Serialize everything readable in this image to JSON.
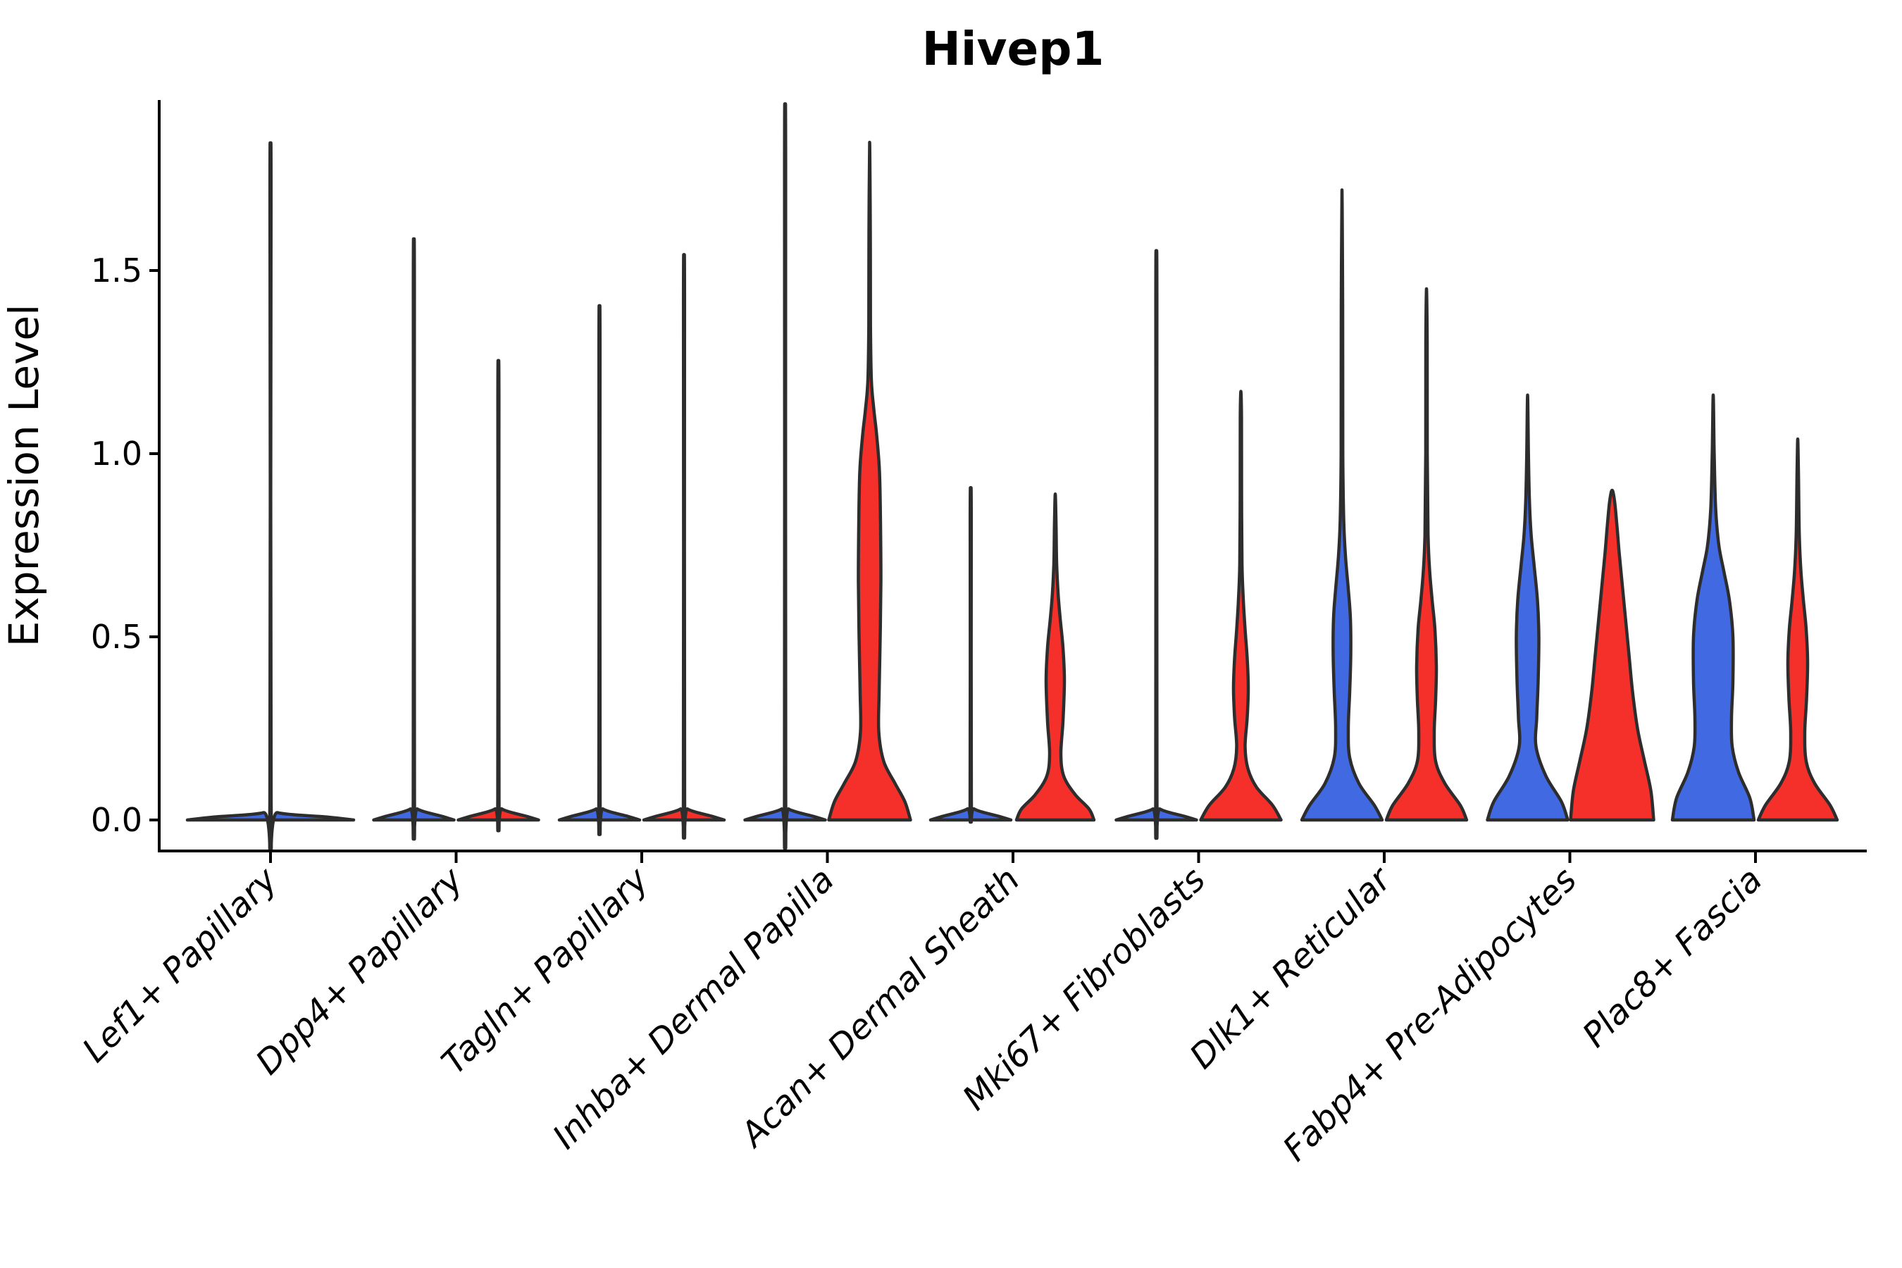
{
  "title": "Hivep1",
  "axes": {
    "y_label": "Expression Level",
    "y_ticks": [
      "0.0",
      "0.5",
      "1.0",
      "1.5"
    ],
    "y_tick_values": [
      0.0,
      0.5,
      1.0,
      1.5
    ],
    "x_categories": [
      "Lef1+ Papillary",
      "Dpp4+ Papillary",
      "Tagln+ Papillary",
      "Inhba+ Dermal Papilla",
      "Acan+ Dermal Sheath",
      "Mki67+ Fibroblasts",
      "Dlk1+ Reticular",
      "Fabp4+ Pre-Adipocytes",
      "Plac8+ Fascia"
    ]
  },
  "colors": {
    "group_blue": "#4169E1",
    "group_red": "#F5302B",
    "violin_outline": "#2D2D2D",
    "axis": "#000000",
    "background": "#ffffff"
  },
  "chart_data": {
    "type": "violin",
    "title": "Hivep1",
    "xlabel": "",
    "ylabel": "Expression Level",
    "ylim": [
      -0.08,
      1.97
    ],
    "y_ticks": [
      0.0,
      0.5,
      1.0,
      1.5
    ],
    "grid": false,
    "legend": "none shown",
    "categories": [
      "Lef1+ Papillary",
      "Dpp4+ Papillary",
      "Tagln+ Papillary",
      "Inhba+ Dermal Papilla",
      "Acan+ Dermal Sheath",
      "Mki67+ Fibroblasts",
      "Dlk1+ Reticular",
      "Fabp4+ Pre-Adipocytes",
      "Plac8+ Fascia"
    ],
    "groups": [
      {
        "key": "blue",
        "color": "#4169E1"
      },
      {
        "key": "red",
        "color": "#F5302B"
      }
    ],
    "series": [
      {
        "name": "blue",
        "max_expression": [
          1.77,
          1.52,
          1.35,
          1.87,
          0.88,
          1.49,
          1.72,
          1.16,
          1.16
        ]
      },
      {
        "name": "red",
        "max_expression": [
          null,
          1.21,
          1.48,
          1.85,
          0.89,
          1.17,
          1.45,
          0.9,
          1.04
        ]
      }
    ],
    "violins": [
      {
        "category": "Lef1+ Papillary",
        "group": "blue",
        "cat_index": 0,
        "side": 0,
        "tip": 1.77,
        "density_profile": [
          [
            0,
            118
          ],
          [
            0.008,
            80
          ],
          [
            0.02,
            10
          ],
          [
            0.05,
            0.9
          ],
          [
            1.7,
            0.8
          ],
          [
            1.77,
            0
          ]
        ]
      },
      {
        "category": "Dpp4+ Papillary",
        "group": "blue",
        "cat_index": 1,
        "side": -1,
        "tip": 1.52,
        "density_profile": [
          [
            0,
            57
          ],
          [
            0.01,
            40
          ],
          [
            0.03,
            5
          ],
          [
            0.06,
            0.9
          ],
          [
            1.46,
            0.8
          ],
          [
            1.52,
            0
          ]
        ]
      },
      {
        "category": "Dpp4+ Papillary",
        "group": "red",
        "cat_index": 1,
        "side": 1,
        "tip": 1.21,
        "density_profile": [
          [
            0,
            57
          ],
          [
            0.01,
            40
          ],
          [
            0.03,
            5
          ],
          [
            0.06,
            0.9
          ],
          [
            1.15,
            0.8
          ],
          [
            1.21,
            0
          ]
        ]
      },
      {
        "category": "Tagln+ Papillary",
        "group": "blue",
        "cat_index": 2,
        "side": -1,
        "tip": 1.35,
        "density_profile": [
          [
            0,
            57
          ],
          [
            0.01,
            40
          ],
          [
            0.03,
            5
          ],
          [
            0.06,
            0.9
          ],
          [
            1.29,
            0.8
          ],
          [
            1.35,
            0
          ]
        ]
      },
      {
        "category": "Tagln+ Papillary",
        "group": "red",
        "cat_index": 2,
        "side": 1,
        "tip": 1.48,
        "density_profile": [
          [
            0,
            57
          ],
          [
            0.01,
            40
          ],
          [
            0.03,
            5
          ],
          [
            0.06,
            0.9
          ],
          [
            1.42,
            0.8
          ],
          [
            1.48,
            0
          ]
        ]
      },
      {
        "category": "Inhba+ Dermal Papilla",
        "group": "blue",
        "cat_index": 3,
        "side": -1,
        "tip": 1.87,
        "density_profile": [
          [
            0,
            57
          ],
          [
            0.01,
            40
          ],
          [
            0.03,
            5
          ],
          [
            0.06,
            0.9
          ],
          [
            1.8,
            0.8
          ],
          [
            1.87,
            0
          ]
        ]
      },
      {
        "category": "Inhba+ Dermal Papilla",
        "group": "red",
        "cat_index": 3,
        "side": 1,
        "tip": 1.85,
        "density_profile": [
          [
            0,
            58
          ],
          [
            0.05,
            50
          ],
          [
            0.1,
            36
          ],
          [
            0.16,
            20
          ],
          [
            0.24,
            13
          ],
          [
            0.35,
            13.5
          ],
          [
            0.5,
            15
          ],
          [
            0.65,
            16
          ],
          [
            0.8,
            15.5
          ],
          [
            0.95,
            14
          ],
          [
            1.05,
            10
          ],
          [
            1.12,
            6
          ],
          [
            1.2,
            2.5
          ],
          [
            1.35,
            1.2
          ],
          [
            1.6,
            1
          ],
          [
            1.85,
            0
          ]
        ]
      },
      {
        "category": "Acan+ Dermal Sheath",
        "group": "blue",
        "cat_index": 4,
        "side": -1,
        "tip": 0.88,
        "density_profile": [
          [
            0,
            57
          ],
          [
            0.01,
            40
          ],
          [
            0.03,
            5
          ],
          [
            0.06,
            0.9
          ],
          [
            0.83,
            0.8
          ],
          [
            0.88,
            0
          ]
        ]
      },
      {
        "category": "Acan+ Dermal Sheath",
        "group": "red",
        "cat_index": 4,
        "side": 1,
        "tip": 0.89,
        "density_profile": [
          [
            0,
            55
          ],
          [
            0.03,
            48
          ],
          [
            0.07,
            28
          ],
          [
            0.12,
            12
          ],
          [
            0.18,
            8
          ],
          [
            0.27,
            11
          ],
          [
            0.38,
            13
          ],
          [
            0.47,
            11
          ],
          [
            0.55,
            7
          ],
          [
            0.62,
            4
          ],
          [
            0.7,
            2
          ],
          [
            0.8,
            1.2
          ],
          [
            0.89,
            0
          ]
        ]
      },
      {
        "category": "Mki67+ Fibroblasts",
        "group": "blue",
        "cat_index": 5,
        "side": -1,
        "tip": 1.49,
        "density_profile": [
          [
            0,
            57
          ],
          [
            0.01,
            40
          ],
          [
            0.03,
            5
          ],
          [
            0.06,
            0.9
          ],
          [
            1.43,
            0.8
          ],
          [
            1.49,
            0
          ]
        ]
      },
      {
        "category": "Mki67+ Fibroblasts",
        "group": "red",
        "cat_index": 5,
        "side": 1,
        "tip": 1.17,
        "density_profile": [
          [
            0,
            57
          ],
          [
            0.04,
            45
          ],
          [
            0.09,
            22
          ],
          [
            0.14,
            10
          ],
          [
            0.2,
            6
          ],
          [
            0.28,
            9
          ],
          [
            0.36,
            10.5
          ],
          [
            0.44,
            9
          ],
          [
            0.52,
            6
          ],
          [
            0.6,
            3.5
          ],
          [
            0.7,
            1.6
          ],
          [
            0.9,
            1
          ],
          [
            1.1,
            0.9
          ],
          [
            1.17,
            0
          ]
        ]
      },
      {
        "category": "Dlk1+ Reticular",
        "group": "blue",
        "cat_index": 6,
        "side": -1,
        "tip": 1.72,
        "density_profile": [
          [
            0,
            57
          ],
          [
            0.04,
            46
          ],
          [
            0.1,
            24
          ],
          [
            0.17,
            11
          ],
          [
            0.25,
            9
          ],
          [
            0.35,
            11
          ],
          [
            0.45,
            12.5
          ],
          [
            0.55,
            12
          ],
          [
            0.63,
            9
          ],
          [
            0.72,
            5
          ],
          [
            0.82,
            2.5
          ],
          [
            1.0,
            1.2
          ],
          [
            1.4,
            1
          ],
          [
            1.72,
            0
          ]
        ]
      },
      {
        "category": "Dlk1+ Reticular",
        "group": "red",
        "cat_index": 6,
        "side": 1,
        "tip": 1.45,
        "density_profile": [
          [
            0,
            57
          ],
          [
            0.04,
            48
          ],
          [
            0.1,
            26
          ],
          [
            0.16,
            13
          ],
          [
            0.24,
            11
          ],
          [
            0.33,
            13
          ],
          [
            0.42,
            14
          ],
          [
            0.52,
            12
          ],
          [
            0.6,
            8
          ],
          [
            0.68,
            4.5
          ],
          [
            0.78,
            2.2
          ],
          [
            1.0,
            1.1
          ],
          [
            1.3,
            1
          ],
          [
            1.45,
            0
          ]
        ]
      },
      {
        "category": "Fabp4+ Pre-Adipocytes",
        "group": "blue",
        "cat_index": 7,
        "side": -1,
        "tip": 1.16,
        "density_profile": [
          [
            0,
            57
          ],
          [
            0.05,
            48
          ],
          [
            0.12,
            26
          ],
          [
            0.2,
            12
          ],
          [
            0.28,
            13
          ],
          [
            0.38,
            15
          ],
          [
            0.5,
            16
          ],
          [
            0.6,
            14
          ],
          [
            0.7,
            9
          ],
          [
            0.78,
            5
          ],
          [
            0.88,
            2.5
          ],
          [
            1.0,
            1.2
          ],
          [
            1.16,
            0
          ]
        ]
      },
      {
        "category": "Fabp4+ Pre-Adipocytes",
        "group": "red",
        "cat_index": 7,
        "side": 1,
        "tip": 0.9,
        "density_profile": [
          [
            0,
            59
          ],
          [
            0.08,
            55
          ],
          [
            0.16,
            46
          ],
          [
            0.25,
            36
          ],
          [
            0.35,
            29
          ],
          [
            0.45,
            24
          ],
          [
            0.55,
            19
          ],
          [
            0.65,
            14
          ],
          [
            0.73,
            10
          ],
          [
            0.8,
            7
          ],
          [
            0.87,
            3.5
          ],
          [
            0.9,
            0
          ]
        ]
      },
      {
        "category": "Plac8+ Fascia",
        "group": "blue",
        "cat_index": 8,
        "side": -1,
        "tip": 1.16,
        "density_profile": [
          [
            0,
            58
          ],
          [
            0.06,
            52
          ],
          [
            0.13,
            36
          ],
          [
            0.2,
            27
          ],
          [
            0.28,
            26
          ],
          [
            0.38,
            28
          ],
          [
            0.5,
            28
          ],
          [
            0.6,
            23
          ],
          [
            0.68,
            15
          ],
          [
            0.75,
            8
          ],
          [
            0.85,
            3.5
          ],
          [
            1.0,
            1.4
          ],
          [
            1.16,
            0
          ]
        ]
      },
      {
        "category": "Plac8+ Fascia",
        "group": "red",
        "cat_index": 8,
        "side": 1,
        "tip": 1.04,
        "density_profile": [
          [
            0,
            56
          ],
          [
            0.04,
            46
          ],
          [
            0.1,
            24
          ],
          [
            0.16,
            12
          ],
          [
            0.24,
            10
          ],
          [
            0.33,
            12.5
          ],
          [
            0.43,
            14
          ],
          [
            0.52,
            12
          ],
          [
            0.6,
            8
          ],
          [
            0.68,
            4.5
          ],
          [
            0.78,
            2.2
          ],
          [
            0.95,
            1
          ],
          [
            1.04,
            0
          ]
        ]
      }
    ]
  }
}
